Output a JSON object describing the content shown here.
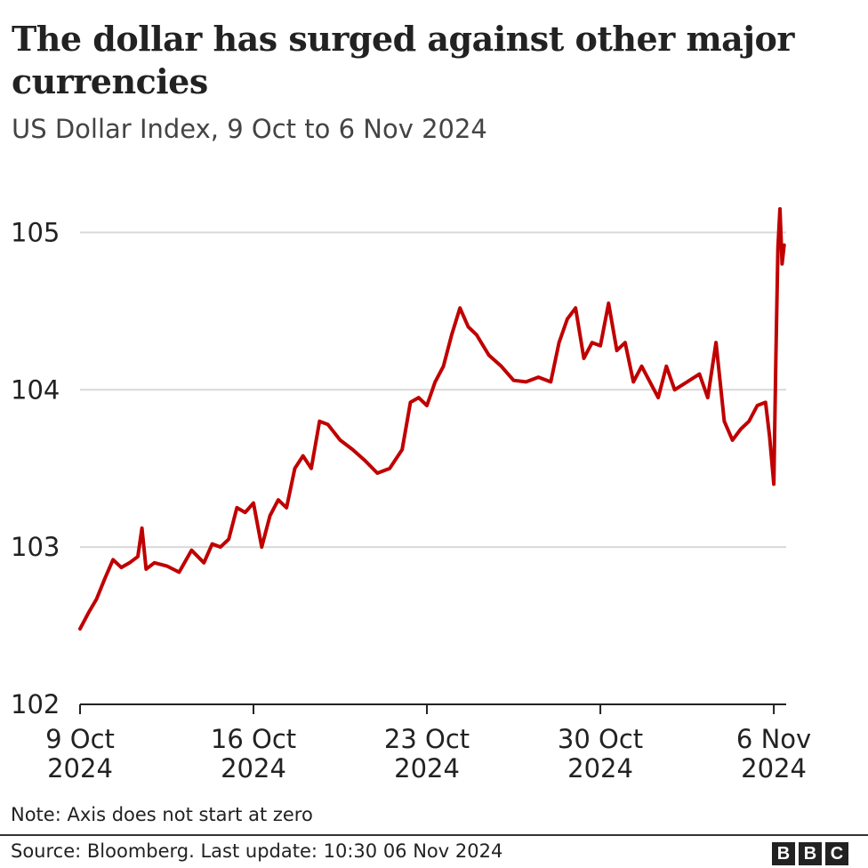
{
  "header": {
    "title": "The dollar has surged against other major currencies",
    "subtitle": "US Dollar Index, 9 Oct to 6 Nov 2024"
  },
  "footer": {
    "note": "Note: Axis does not start at zero",
    "source": "Source: Bloomberg. Last update: 10:30 06 Nov 2024",
    "logo_letters": [
      "B",
      "B",
      "C"
    ]
  },
  "colors": {
    "line": "#c00000",
    "grid": "#d9d9d9",
    "axis": "#222222",
    "text": "#222222"
  },
  "chart_data": {
    "type": "line",
    "title": "The dollar has surged against other major currencies",
    "subtitle": "US Dollar Index, 9 Oct to 6 Nov 2024",
    "xlabel": "",
    "ylabel": "",
    "ylim": [
      102,
      105.5
    ],
    "xlim": [
      "2024-10-09",
      "2024-11-06T12:00"
    ],
    "yticks": [
      102,
      103,
      104,
      105
    ],
    "xticks": [
      {
        "date": "2024-10-09",
        "line1": "9 Oct",
        "line2": "2024"
      },
      {
        "date": "2024-10-16",
        "line1": "16 Oct",
        "line2": "2024"
      },
      {
        "date": "2024-10-23",
        "line1": "23 Oct",
        "line2": "2024"
      },
      {
        "date": "2024-10-30",
        "line1": "30 Oct",
        "line2": "2024"
      },
      {
        "date": "2024-11-06",
        "line1": "6 Nov",
        "line2": "2024"
      }
    ],
    "grid": true,
    "series": [
      {
        "values": [
          [
            "2024-10-09T00:00",
            102.48
          ],
          [
            "2024-10-09T08:00",
            102.58
          ],
          [
            "2024-10-09T16:00",
            102.67
          ],
          [
            "2024-10-10T00:00",
            102.8
          ],
          [
            "2024-10-10T08:00",
            102.92
          ],
          [
            "2024-10-10T16:00",
            102.87
          ],
          [
            "2024-10-11T00:00",
            102.9
          ],
          [
            "2024-10-11T08:00",
            102.94
          ],
          [
            "2024-10-11T12:00",
            103.12
          ],
          [
            "2024-10-11T16:00",
            102.86
          ],
          [
            "2024-10-12T00:00",
            102.9
          ],
          [
            "2024-10-12T12:00",
            102.88
          ],
          [
            "2024-10-13T00:00",
            102.84
          ],
          [
            "2024-10-13T12:00",
            102.98
          ],
          [
            "2024-10-14T00:00",
            102.9
          ],
          [
            "2024-10-14T08:00",
            103.02
          ],
          [
            "2024-10-14T16:00",
            103.0
          ],
          [
            "2024-10-15T00:00",
            103.05
          ],
          [
            "2024-10-15T08:00",
            103.25
          ],
          [
            "2024-10-15T16:00",
            103.22
          ],
          [
            "2024-10-16T00:00",
            103.28
          ],
          [
            "2024-10-16T08:00",
            103.0
          ],
          [
            "2024-10-16T16:00",
            103.2
          ],
          [
            "2024-10-17T00:00",
            103.3
          ],
          [
            "2024-10-17T08:00",
            103.25
          ],
          [
            "2024-10-17T16:00",
            103.5
          ],
          [
            "2024-10-18T00:00",
            103.58
          ],
          [
            "2024-10-18T08:00",
            103.5
          ],
          [
            "2024-10-18T16:00",
            103.8
          ],
          [
            "2024-10-19T00:00",
            103.78
          ],
          [
            "2024-10-19T12:00",
            103.68
          ],
          [
            "2024-10-20T00:00",
            103.62
          ],
          [
            "2024-10-20T12:00",
            103.55
          ],
          [
            "2024-10-21T00:00",
            103.47
          ],
          [
            "2024-10-21T12:00",
            103.5
          ],
          [
            "2024-10-22T00:00",
            103.62
          ],
          [
            "2024-10-22T08:00",
            103.92
          ],
          [
            "2024-10-22T16:00",
            103.95
          ],
          [
            "2024-10-23T00:00",
            103.9
          ],
          [
            "2024-10-23T08:00",
            104.05
          ],
          [
            "2024-10-23T16:00",
            104.15
          ],
          [
            "2024-10-24T00:00",
            104.35
          ],
          [
            "2024-10-24T08:00",
            104.52
          ],
          [
            "2024-10-24T16:00",
            104.4
          ],
          [
            "2024-10-25T00:00",
            104.35
          ],
          [
            "2024-10-25T12:00",
            104.22
          ],
          [
            "2024-10-26T00:00",
            104.15
          ],
          [
            "2024-10-26T12:00",
            104.06
          ],
          [
            "2024-10-27T00:00",
            104.05
          ],
          [
            "2024-10-27T12:00",
            104.08
          ],
          [
            "2024-10-28T00:00",
            104.05
          ],
          [
            "2024-10-28T08:00",
            104.3
          ],
          [
            "2024-10-28T16:00",
            104.45
          ],
          [
            "2024-10-29T00:00",
            104.52
          ],
          [
            "2024-10-29T08:00",
            104.2
          ],
          [
            "2024-10-29T16:00",
            104.3
          ],
          [
            "2024-10-30T00:00",
            104.28
          ],
          [
            "2024-10-30T08:00",
            104.55
          ],
          [
            "2024-10-30T16:00",
            104.25
          ],
          [
            "2024-10-31T00:00",
            104.3
          ],
          [
            "2024-10-31T08:00",
            104.05
          ],
          [
            "2024-10-31T16:00",
            104.15
          ],
          [
            "2024-11-01T00:00",
            104.05
          ],
          [
            "2024-11-01T08:00",
            103.95
          ],
          [
            "2024-11-01T16:00",
            104.15
          ],
          [
            "2024-11-02T00:00",
            104.0
          ],
          [
            "2024-11-02T12:00",
            104.05
          ],
          [
            "2024-11-03T00:00",
            104.1
          ],
          [
            "2024-11-03T08:00",
            103.95
          ],
          [
            "2024-11-03T16:00",
            104.3
          ],
          [
            "2024-11-04T00:00",
            103.8
          ],
          [
            "2024-11-04T08:00",
            103.68
          ],
          [
            "2024-11-04T16:00",
            103.75
          ],
          [
            "2024-11-05T00:00",
            103.8
          ],
          [
            "2024-11-05T08:00",
            103.9
          ],
          [
            "2024-11-05T16:00",
            103.92
          ],
          [
            "2024-11-05T20:00",
            103.7
          ],
          [
            "2024-11-06T00:00",
            103.4
          ],
          [
            "2024-11-06T02:00",
            104.2
          ],
          [
            "2024-11-06T04:00",
            104.9
          ],
          [
            "2024-11-06T06:00",
            105.15
          ],
          [
            "2024-11-06T08:00",
            104.8
          ],
          [
            "2024-11-06T10:00",
            104.92
          ]
        ]
      }
    ]
  }
}
